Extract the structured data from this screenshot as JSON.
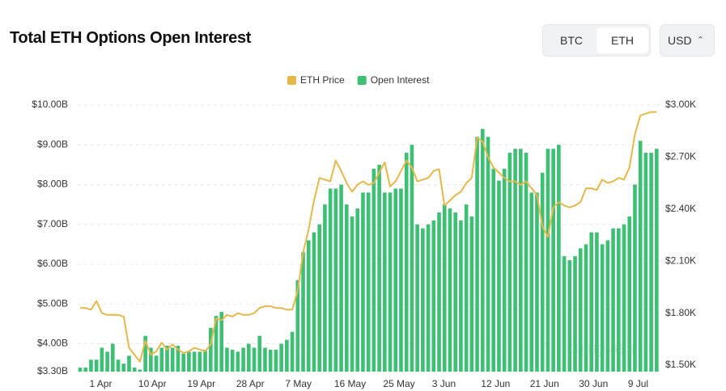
{
  "header": {
    "title": "Total ETH Options Open Interest",
    "toggle": [
      "BTC",
      "ETH"
    ],
    "currency": "USD"
  },
  "watermark": "coinglass",
  "chart_data": {
    "type": "bar-line",
    "categories": [
      null,
      null,
      "1 Apr",
      null,
      null,
      null,
      null,
      null,
      null,
      null,
      null,
      "10 Apr",
      null,
      null,
      null,
      null,
      null,
      null,
      null,
      null,
      "19 Apr",
      null,
      null,
      null,
      null,
      null,
      null,
      null,
      null,
      "28 Apr",
      null,
      null,
      null,
      null,
      null,
      null,
      null,
      null,
      "7 May",
      null,
      null,
      null,
      null,
      null,
      null,
      null,
      null,
      "16 May",
      null,
      null,
      null,
      null,
      null,
      null,
      null,
      null,
      "25 May",
      null,
      null,
      null,
      null,
      null,
      null,
      null,
      null,
      "3 Jun",
      null,
      null,
      null,
      null,
      null,
      null,
      null,
      null,
      "12 Jun",
      null,
      null,
      null,
      null,
      null,
      null,
      null,
      null,
      "21 Jun",
      null,
      null,
      null,
      null,
      null,
      null,
      null,
      null,
      "30 Jun",
      null,
      null,
      null,
      null,
      null,
      null,
      null,
      null,
      "9 Jul",
      null,
      null,
      null,
      null,
      null
    ],
    "series": [
      {
        "name": "Open Interest",
        "color": "#3dbf74",
        "axis": "y",
        "values": [
          3.4,
          3.4,
          3.6,
          3.6,
          3.9,
          3.8,
          4.0,
          3.6,
          3.5,
          3.7,
          3.4,
          3.35,
          4.2,
          3.9,
          3.7,
          3.9,
          3.95,
          3.9,
          3.95,
          3.75,
          3.8,
          3.8,
          3.8,
          3.85,
          4.4,
          4.7,
          4.8,
          3.9,
          3.85,
          3.8,
          3.9,
          4.0,
          3.9,
          4.2,
          3.9,
          3.85,
          3.85,
          4.0,
          4.1,
          4.3,
          5.6,
          6.3,
          6.6,
          6.8,
          7.0,
          7.5,
          7.9,
          7.9,
          8.0,
          7.5,
          7.2,
          7.4,
          7.8,
          7.8,
          8.4,
          8.5,
          7.8,
          7.8,
          7.9,
          7.9,
          8.8,
          9.0,
          7.0,
          6.9,
          7.0,
          7.1,
          7.3,
          7.5,
          7.4,
          7.3,
          7.1,
          7.5,
          7.2,
          9.2,
          9.4,
          9.2,
          8.4,
          8.1,
          8.4,
          8.8,
          8.9,
          8.9,
          8.8,
          7.8,
          7.8,
          8.3,
          8.9,
          8.9,
          9.0,
          6.2,
          6.1,
          6.2,
          6.4,
          6.5,
          6.8,
          6.8,
          6.5,
          6.6,
          6.9,
          6.9,
          7.0,
          7.2,
          8.0,
          9.1,
          8.8,
          8.8,
          8.9
        ]
      },
      {
        "name": "ETH Price",
        "color": "#e6b84a",
        "axis": "y2",
        "values": [
          1830,
          1830,
          1820,
          1870,
          1800,
          1790,
          1790,
          1790,
          1780,
          1600,
          1560,
          1520,
          1640,
          1560,
          1580,
          1630,
          1590,
          1620,
          1590,
          1570,
          1580,
          1600,
          1590,
          1580,
          1620,
          1770,
          1760,
          1790,
          1780,
          1800,
          1790,
          1790,
          1800,
          1830,
          1840,
          1840,
          1830,
          1830,
          1820,
          1820,
          1930,
          2150,
          2280,
          2450,
          2580,
          2570,
          2560,
          2680,
          2620,
          2550,
          2500,
          2540,
          2560,
          2540,
          2550,
          2610,
          2670,
          2530,
          2560,
          2620,
          2680,
          2640,
          2560,
          2570,
          2580,
          2620,
          2630,
          2420,
          2450,
          2480,
          2500,
          2550,
          2580,
          2810,
          2790,
          2700,
          2640,
          2610,
          2580,
          2560,
          2560,
          2540,
          2560,
          2520,
          2480,
          2300,
          2240,
          2410,
          2440,
          2420,
          2410,
          2420,
          2440,
          2520,
          2520,
          2510,
          2570,
          2550,
          2560,
          2580,
          2570,
          2640,
          2830,
          2940,
          2950,
          2960,
          2960
        ]
      }
    ],
    "ylim": [
      3.3,
      10
    ],
    "yticks": [
      {
        "value": 3.3,
        "label": "$3.30B"
      },
      {
        "value": 4,
        "label": "$4.00B"
      },
      {
        "value": 5,
        "label": "$5.00B"
      },
      {
        "value": 6,
        "label": "$6.00B"
      },
      {
        "value": 7,
        "label": "$7.00B"
      },
      {
        "value": 8,
        "label": "$8.00B"
      },
      {
        "value": 9,
        "label": "$9.00B"
      },
      {
        "value": 10,
        "label": "$10.00B"
      }
    ],
    "y2lim": [
      1463,
      3000
    ],
    "y2ticks": [
      {
        "value": 1500,
        "label": "$1.50K"
      },
      {
        "value": 1800,
        "label": "$1.80K"
      },
      {
        "value": 2100,
        "label": "$2.10K"
      },
      {
        "value": 2400,
        "label": "$2.40K"
      },
      {
        "value": 2700,
        "label": "$2.70K"
      },
      {
        "value": 3000,
        "label": "$3.00K"
      }
    ],
    "grid": true,
    "legend": "top"
  }
}
